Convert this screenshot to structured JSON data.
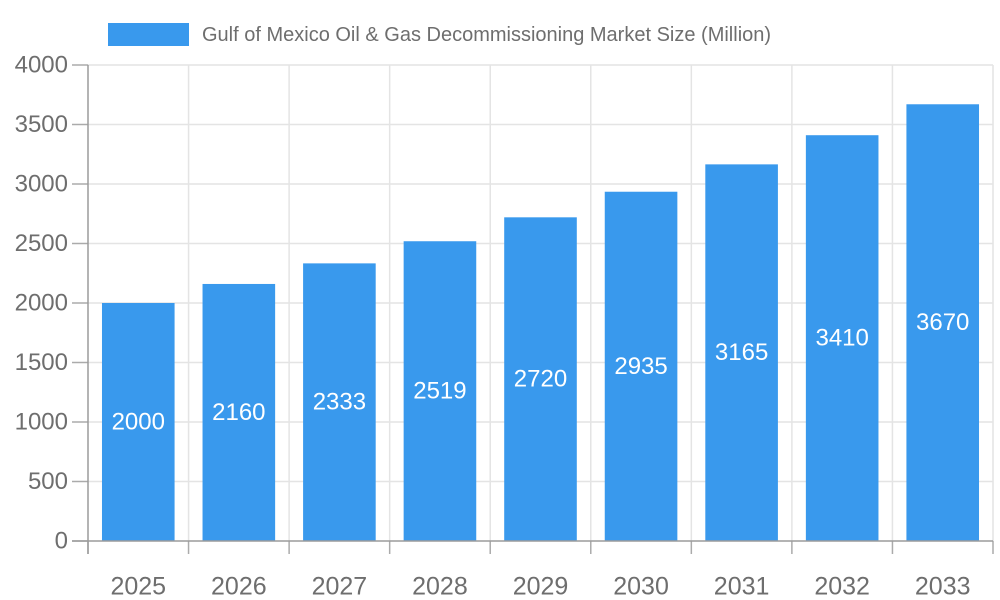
{
  "legend": {
    "label": "Gulf of Mexico Oil & Gas Decommissioning Market Size (Million)"
  },
  "chart_data": {
    "type": "bar",
    "title": "Gulf of Mexico Oil & Gas Decommissioning Market Size (Million)",
    "categories": [
      "2025",
      "2026",
      "2027",
      "2028",
      "2029",
      "2030",
      "2031",
      "2032",
      "2033"
    ],
    "series": [
      {
        "name": "Gulf of Mexico Oil & Gas Decommissioning Market Size (Million)",
        "values": [
          2000,
          2160,
          2333,
          2519,
          2720,
          2935,
          3165,
          3410,
          3670
        ]
      }
    ],
    "xlabel": "",
    "ylabel": "",
    "ylim": [
      0,
      4000
    ],
    "ytick_step": 500,
    "ytick_labels": [
      "0",
      "500",
      "1000",
      "1500",
      "2000",
      "2500",
      "3000",
      "3500",
      "4000"
    ],
    "grid": true,
    "value_labels_inside_bars": true,
    "legend_position": "top",
    "colors": {
      "bar": "#3999ED",
      "bar_value_text": "#FFFFFF",
      "axis_text": "#6E6E6E",
      "legend_text": "#6E6E6E",
      "gridline": "#E4E4E4",
      "axis_line": "#9B9B9B",
      "tick_mark": "#ABABAB",
      "background": "#FFFFFF"
    }
  }
}
